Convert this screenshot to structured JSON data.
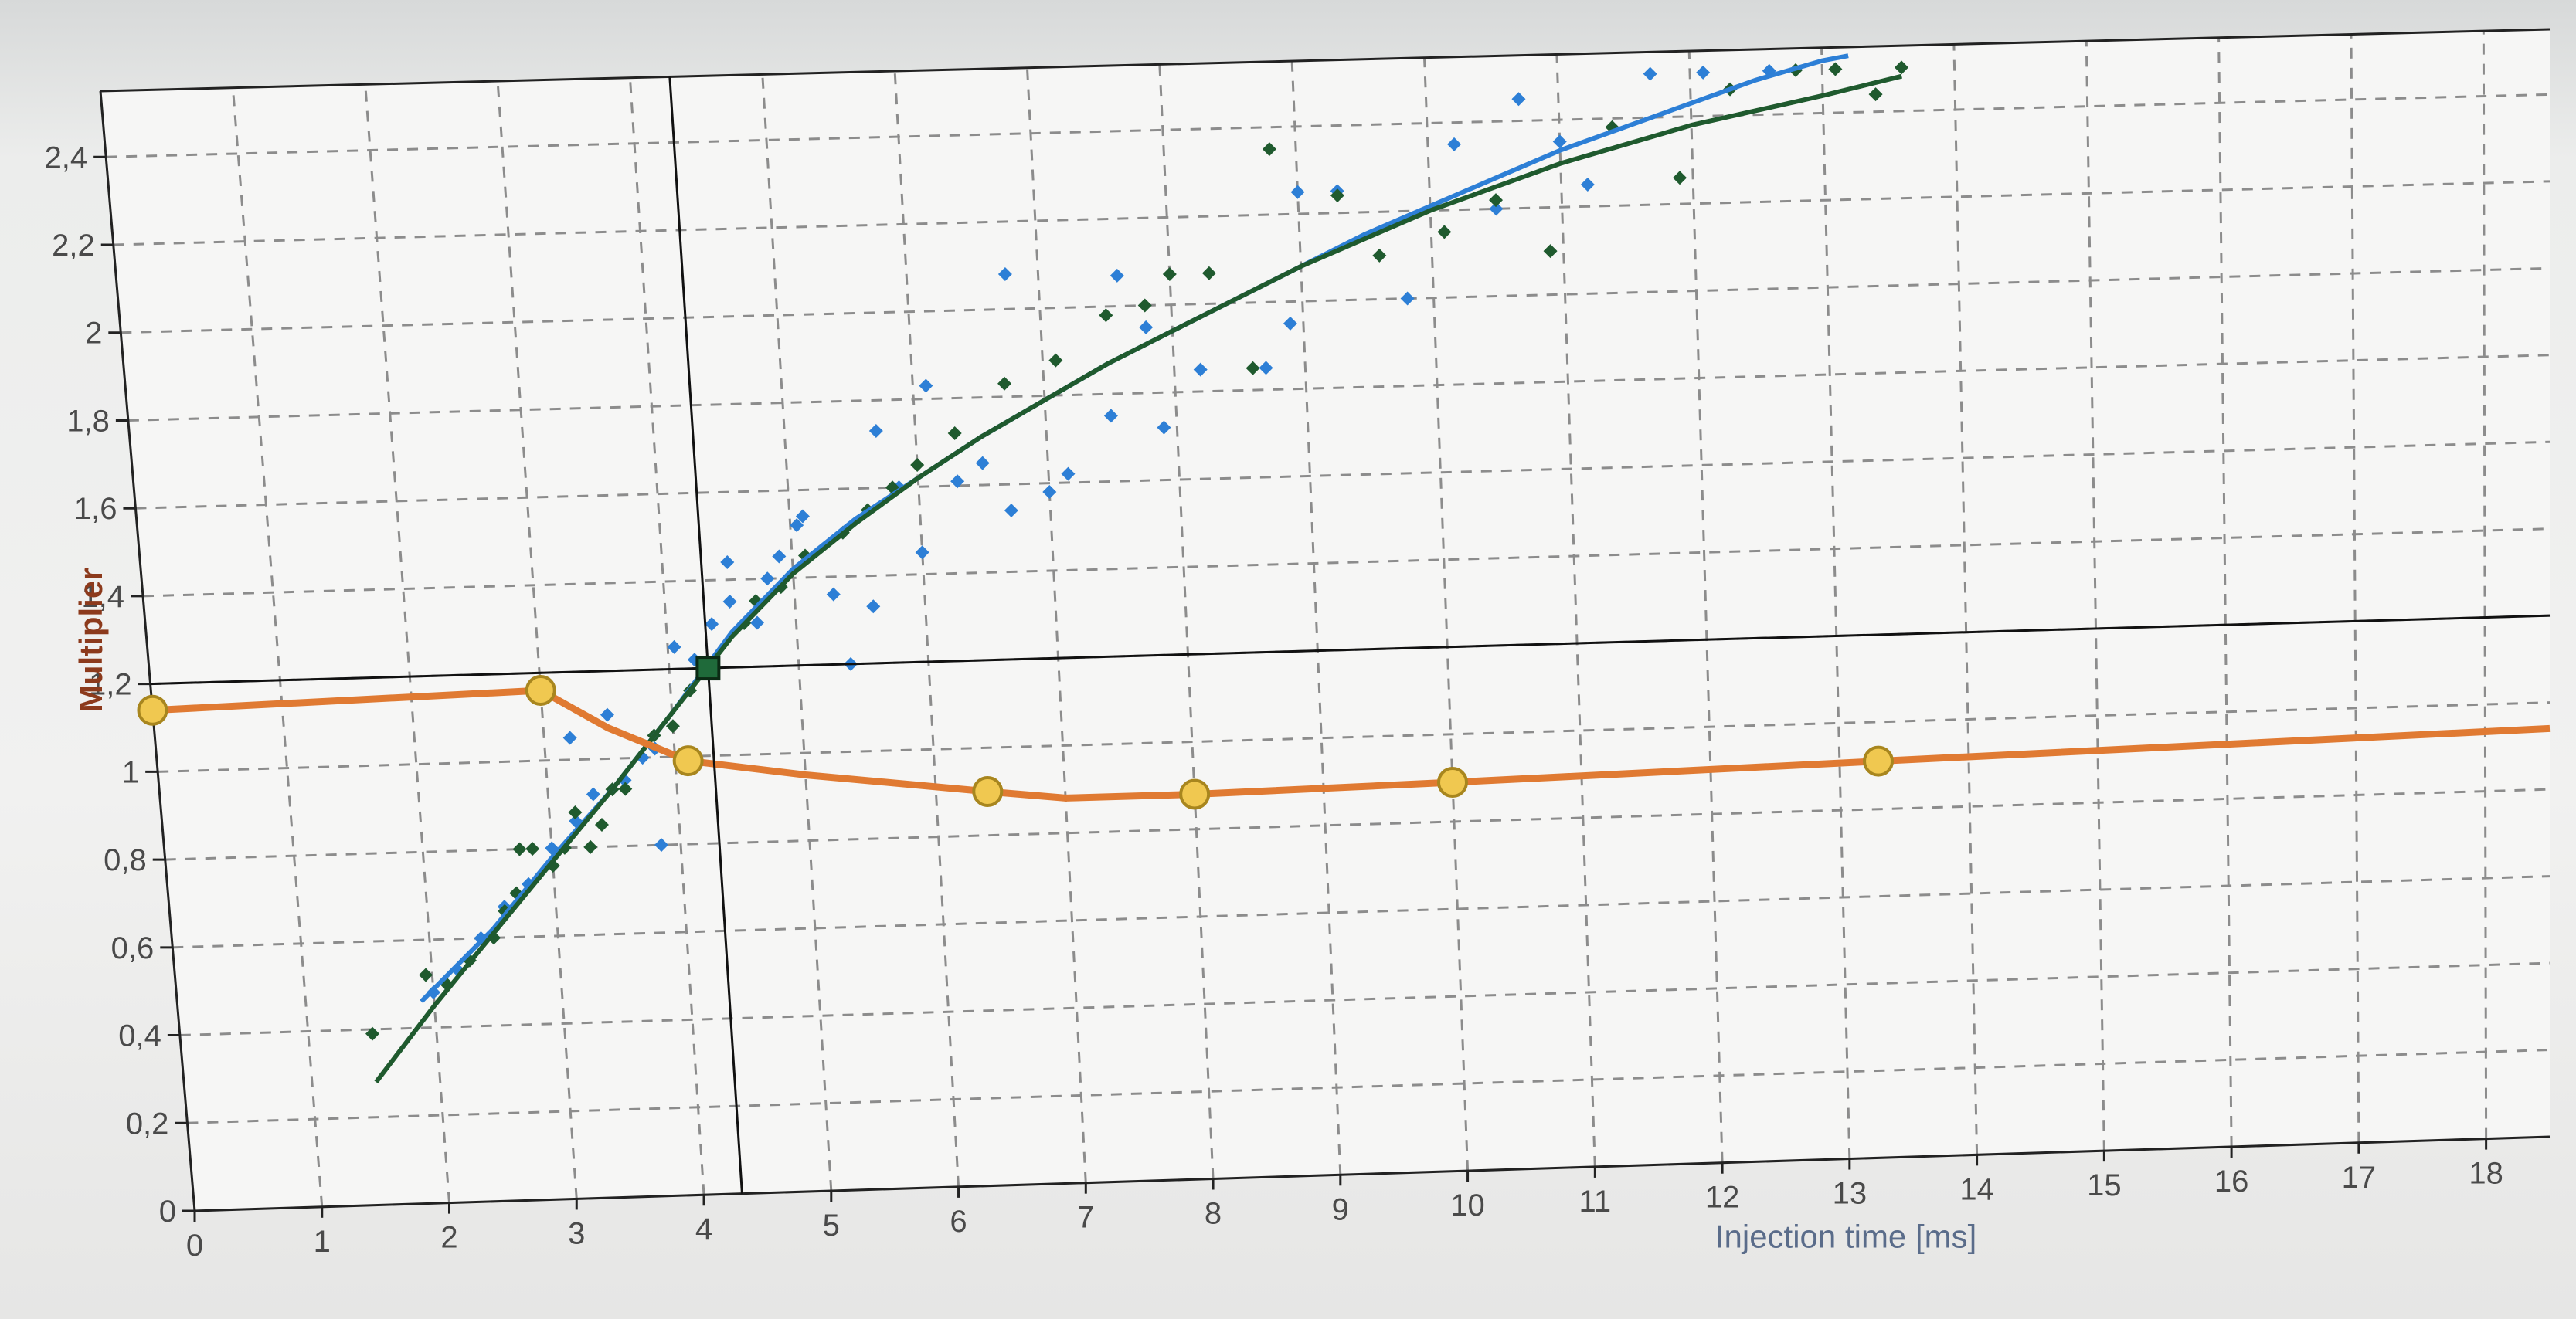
{
  "chart_data": {
    "type": "scatter",
    "title": "",
    "xlabel": "Injection time [ms]",
    "ylabel": "Multiplier",
    "xlim": [
      0,
      18.5
    ],
    "ylim": [
      0,
      2.55
    ],
    "x_ticks": [
      0,
      1,
      2,
      3,
      4,
      5,
      6,
      7,
      8,
      9,
      10,
      11,
      12,
      13,
      14,
      15,
      16,
      17,
      18
    ],
    "x_tick_labels": [
      "0",
      "1",
      "2",
      "3",
      "4",
      "5",
      "6",
      "7",
      "8",
      "9",
      "10",
      "11",
      "12",
      "13",
      "14",
      "15",
      "16",
      "17",
      "18"
    ],
    "y_ticks": [
      0,
      0.2,
      0.4,
      0.6,
      0.8,
      1,
      1.2,
      1.4,
      1.6,
      1.8,
      2,
      2.2,
      2.4
    ],
    "y_tick_labels": [
      "0",
      "0,2",
      "0,4",
      "0,6",
      "0,8",
      "1",
      "1,2",
      "1,4",
      "1,6",
      "1,8",
      "2",
      "2,2",
      "2,4"
    ],
    "grid": true,
    "legend": "none",
    "cursor": {
      "x": 4.3,
      "y": 1.2
    },
    "colors": {
      "blue": "#2d7fd6",
      "darkgreen": "#1f5a2e",
      "orange": "#e07a32",
      "node_fill": "#f0c850",
      "node_stroke": "#a8861e",
      "grid": "#8c8c8c",
      "axis": "#222222"
    },
    "series": [
      {
        "kind": "scatter",
        "color": "blue",
        "points": [
          [
            2.0,
            0.48
          ],
          [
            2.2,
            0.53
          ],
          [
            2.4,
            0.6
          ],
          [
            2.6,
            0.67
          ],
          [
            2.8,
            0.72
          ],
          [
            3.0,
            0.8
          ],
          [
            3.2,
            0.86
          ],
          [
            3.2,
            1.05
          ],
          [
            3.35,
            0.92
          ],
          [
            3.5,
            1.1
          ],
          [
            3.6,
            0.95
          ],
          [
            3.75,
            1.0
          ],
          [
            3.85,
            1.02
          ],
          [
            3.85,
            0.8
          ],
          [
            4.05,
            1.25
          ],
          [
            4.2,
            1.22
          ],
          [
            4.35,
            1.3
          ],
          [
            4.5,
            1.35
          ],
          [
            4.5,
            1.44
          ],
          [
            4.7,
            1.3
          ],
          [
            4.8,
            1.4
          ],
          [
            4.9,
            1.45
          ],
          [
            5.05,
            1.52
          ],
          [
            5.1,
            1.54
          ],
          [
            5.3,
            1.36
          ],
          [
            5.4,
            1.2
          ],
          [
            5.6,
            1.33
          ],
          [
            5.7,
            1.73
          ],
          [
            5.85,
            1.6
          ],
          [
            6.0,
            1.45
          ],
          [
            6.1,
            1.83
          ],
          [
            6.3,
            1.61
          ],
          [
            6.5,
            1.65
          ],
          [
            6.7,
            1.54
          ],
          [
            6.75,
            2.08
          ],
          [
            7.0,
            1.58
          ],
          [
            7.15,
            1.62
          ],
          [
            7.5,
            1.75
          ],
          [
            7.6,
            2.07
          ],
          [
            7.8,
            1.95
          ],
          [
            7.9,
            1.72
          ],
          [
            8.2,
            1.85
          ],
          [
            8.7,
            1.85
          ],
          [
            8.9,
            1.95
          ],
          [
            9.0,
            2.25
          ],
          [
            9.3,
            2.25
          ],
          [
            9.8,
            2.0
          ],
          [
            10.2,
            2.35
          ],
          [
            10.5,
            2.2
          ],
          [
            10.7,
            2.45
          ],
          [
            11.0,
            2.35
          ],
          [
            11.2,
            2.25
          ],
          [
            11.7,
            2.5
          ],
          [
            12.1,
            2.5
          ],
          [
            12.6,
            2.5
          ]
        ]
      },
      {
        "kind": "scatter",
        "color": "darkgreen",
        "points": [
          [
            1.5,
            0.39
          ],
          [
            1.95,
            0.52
          ],
          [
            2.1,
            0.5
          ],
          [
            2.3,
            0.55
          ],
          [
            2.5,
            0.6
          ],
          [
            2.6,
            0.66
          ],
          [
            2.7,
            0.7
          ],
          [
            2.75,
            0.8
          ],
          [
            2.85,
            0.8
          ],
          [
            3.0,
            0.76
          ],
          [
            3.1,
            0.8
          ],
          [
            3.2,
            0.88
          ],
          [
            3.3,
            0.8
          ],
          [
            3.4,
            0.85
          ],
          [
            3.5,
            0.93
          ],
          [
            3.6,
            0.93
          ],
          [
            3.85,
            1.05
          ],
          [
            4.0,
            1.07
          ],
          [
            4.15,
            1.15
          ],
          [
            4.3,
            1.2
          ],
          [
            4.6,
            1.3
          ],
          [
            4.7,
            1.35
          ],
          [
            4.9,
            1.38
          ],
          [
            5.1,
            1.45
          ],
          [
            5.4,
            1.5
          ],
          [
            5.6,
            1.55
          ],
          [
            5.8,
            1.6
          ],
          [
            6.0,
            1.65
          ],
          [
            6.3,
            1.72
          ],
          [
            6.7,
            1.83
          ],
          [
            7.1,
            1.88
          ],
          [
            7.5,
            1.98
          ],
          [
            7.8,
            2.0
          ],
          [
            8.0,
            2.07
          ],
          [
            8.3,
            2.07
          ],
          [
            8.6,
            1.85
          ],
          [
            8.8,
            2.35
          ],
          [
            9.3,
            2.24
          ],
          [
            9.6,
            2.1
          ],
          [
            10.1,
            2.15
          ],
          [
            10.5,
            2.22
          ],
          [
            10.9,
            2.1
          ],
          [
            11.4,
            2.38
          ],
          [
            11.9,
            2.26
          ],
          [
            12.3,
            2.46
          ],
          [
            12.8,
            2.5
          ],
          [
            13.1,
            2.5
          ],
          [
            13.4,
            2.44
          ],
          [
            13.6,
            2.5
          ]
        ]
      },
      {
        "kind": "line",
        "color": "blue",
        "points": [
          [
            1.9,
            0.46
          ],
          [
            2.5,
            0.62
          ],
          [
            3.0,
            0.78
          ],
          [
            3.5,
            0.93
          ],
          [
            4.0,
            1.1
          ],
          [
            4.5,
            1.28
          ],
          [
            5.0,
            1.42
          ],
          [
            5.5,
            1.53
          ],
          [
            6.0,
            1.62
          ],
          [
            6.5,
            1.71
          ],
          [
            7.0,
            1.79
          ],
          [
            7.5,
            1.87
          ],
          [
            8.0,
            1.94
          ],
          [
            8.5,
            2.01
          ],
          [
            9.0,
            2.08
          ],
          [
            9.5,
            2.15
          ],
          [
            10.0,
            2.21
          ],
          [
            10.5,
            2.27
          ],
          [
            11.0,
            2.33
          ],
          [
            11.5,
            2.38
          ],
          [
            12.0,
            2.43
          ],
          [
            12.5,
            2.48
          ],
          [
            13.0,
            2.52
          ],
          [
            13.2,
            2.53
          ]
        ]
      },
      {
        "kind": "line",
        "color": "darkgreen",
        "points": [
          [
            1.5,
            0.28
          ],
          [
            2.0,
            0.45
          ],
          [
            2.5,
            0.61
          ],
          [
            3.0,
            0.77
          ],
          [
            3.5,
            0.93
          ],
          [
            4.0,
            1.1
          ],
          [
            4.5,
            1.27
          ],
          [
            5.0,
            1.41
          ],
          [
            5.5,
            1.52
          ],
          [
            6.0,
            1.62
          ],
          [
            6.5,
            1.71
          ],
          [
            7.0,
            1.79
          ],
          [
            7.5,
            1.87
          ],
          [
            8.0,
            1.94
          ],
          [
            8.5,
            2.01
          ],
          [
            9.0,
            2.08
          ],
          [
            9.5,
            2.14
          ],
          [
            10.0,
            2.2
          ],
          [
            10.5,
            2.25
          ],
          [
            11.0,
            2.3
          ],
          [
            11.5,
            2.34
          ],
          [
            12.0,
            2.38
          ],
          [
            12.5,
            2.41
          ],
          [
            13.0,
            2.44
          ],
          [
            13.6,
            2.48
          ]
        ]
      },
      {
        "kind": "line",
        "color": "orange",
        "points": [
          [
            0,
            1.14
          ],
          [
            3.0,
            1.16
          ],
          [
            3.5,
            1.07
          ],
          [
            4.1,
            0.99
          ],
          [
            5.0,
            0.95
          ],
          [
            6.4,
            0.9
          ],
          [
            7.0,
            0.88
          ],
          [
            8.0,
            0.88
          ],
          [
            10.0,
            0.89
          ],
          [
            13.3,
            0.91
          ],
          [
            18.5,
            0.94
          ]
        ]
      },
      {
        "kind": "nodes",
        "color": "orange",
        "points": [
          [
            0,
            1.14
          ],
          [
            3.0,
            1.16
          ],
          [
            4.1,
            0.99
          ],
          [
            6.4,
            0.9
          ],
          [
            8.0,
            0.88
          ],
          [
            10.0,
            0.89
          ],
          [
            13.3,
            0.91
          ]
        ]
      }
    ]
  }
}
